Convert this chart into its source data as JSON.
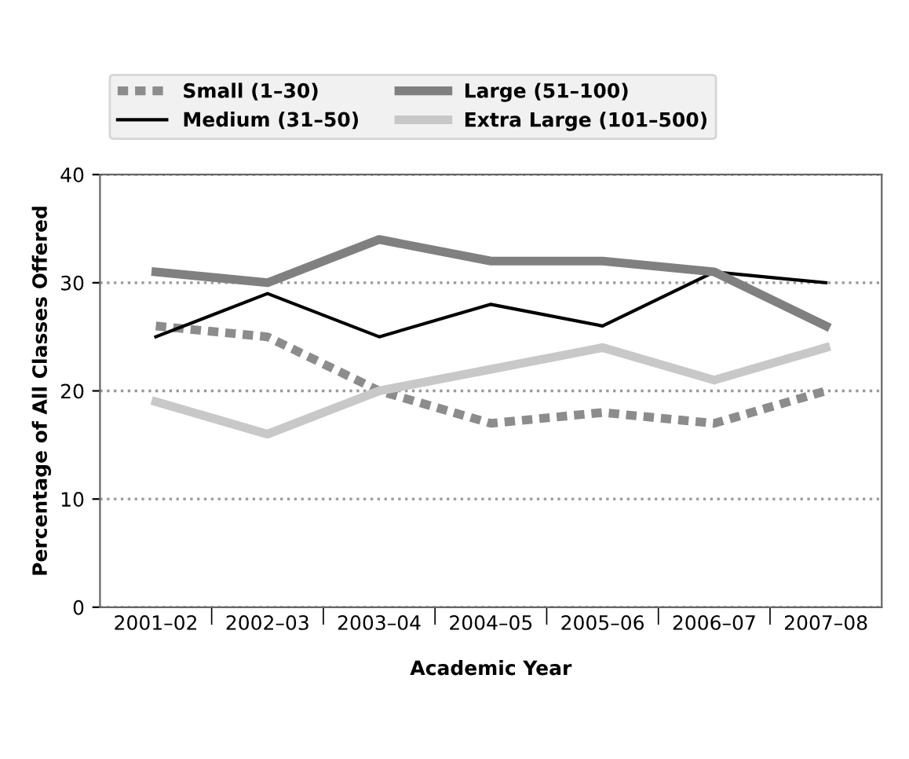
{
  "chart_data": {
    "type": "line",
    "xlabel": "Academic Year",
    "ylabel": "Percentage of All Classes Offered",
    "categories": [
      "2001–02",
      "2002–03",
      "2003–04",
      "2004–05",
      "2005–06",
      "2006–07",
      "2007–08"
    ],
    "series": [
      {
        "name": "Small (1–30)",
        "color": "#8c8c8c",
        "line_style": "dashed",
        "values": [
          26,
          25,
          20,
          17,
          18,
          17,
          20
        ]
      },
      {
        "name": "Medium (31–50)",
        "color": "#000000",
        "line_style": "solid",
        "values": [
          25,
          29,
          25,
          28,
          26,
          31,
          30
        ]
      },
      {
        "name": "Large (51–100)",
        "color": "#808080",
        "line_style": "solid",
        "values": [
          31,
          30,
          34,
          32,
          32,
          31,
          26
        ]
      },
      {
        "name": "Extra Large (101–500)",
        "color": "#c8c8c8",
        "line_style": "solid",
        "values": [
          19,
          16,
          20,
          22,
          24,
          21,
          24
        ]
      }
    ],
    "ylim": [
      0,
      40
    ],
    "yticks": [
      0,
      10,
      20,
      30,
      40
    ],
    "grid": "y",
    "legend": "top",
    "marker": "none"
  }
}
